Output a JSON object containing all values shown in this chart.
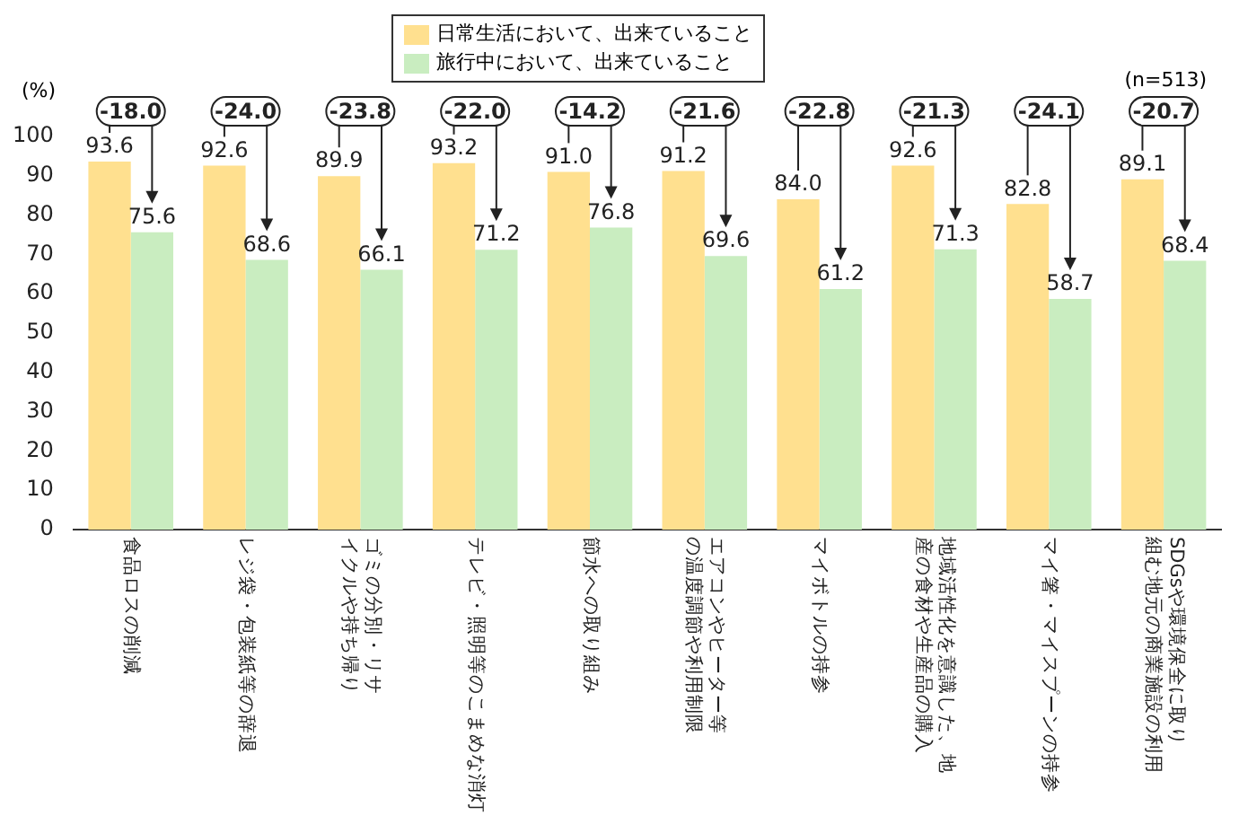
{
  "chart_data": {
    "type": "bar",
    "categories": [
      "食品ロスの削減",
      "レジ袋・包装紙等の辞退",
      "ゴミの分別・リサイクルや持ち帰り",
      "テレビ・照明等のこまめな消灯",
      "節水への取り組み",
      "エアコンやヒーター等の温度調節や利用制限",
      "マイボトルの持参",
      "地域活性化を意識した、地産の食材や生産品の購入",
      "マイ箸・マイスプーンの持参",
      "SDGsや環境保全に取り組む地元の商業施設の利用"
    ],
    "series": [
      {
        "name": "日常生活において、出来ていること",
        "color": "#ffe08f",
        "values": [
          93.6,
          92.6,
          89.9,
          93.2,
          91.0,
          91.2,
          84.0,
          92.6,
          82.8,
          89.1
        ],
        "value_labels": [
          "93.6",
          "92.6",
          "89.9",
          "93.2",
          "91.0",
          "91.2",
          "84.0",
          "92.6",
          "82.8",
          "89.1"
        ]
      },
      {
        "name": "旅行中において、出来ていること",
        "color": "#c9edc0",
        "values": [
          75.6,
          68.6,
          66.1,
          71.2,
          76.8,
          69.6,
          61.2,
          71.3,
          58.7,
          68.4
        ],
        "value_labels": [
          "75.6",
          "68.6",
          "66.1",
          "71.2",
          "76.8",
          "69.6",
          "61.2",
          "71.3",
          "58.7",
          "68.4"
        ]
      }
    ],
    "ylabel": "(%)",
    "ylim": [
      0,
      100
    ],
    "yticks": [
      0,
      10,
      20,
      30,
      40,
      50,
      60,
      70,
      80,
      90,
      100
    ],
    "grid": false,
    "legend": "top",
    "annotations": [
      "-18.0",
      "-24.0",
      "-23.8",
      "-22.0",
      "-14.2",
      "-21.6",
      "-22.8",
      "-21.3",
      "-24.1",
      "-20.7",
      "(n=513)"
    ]
  }
}
